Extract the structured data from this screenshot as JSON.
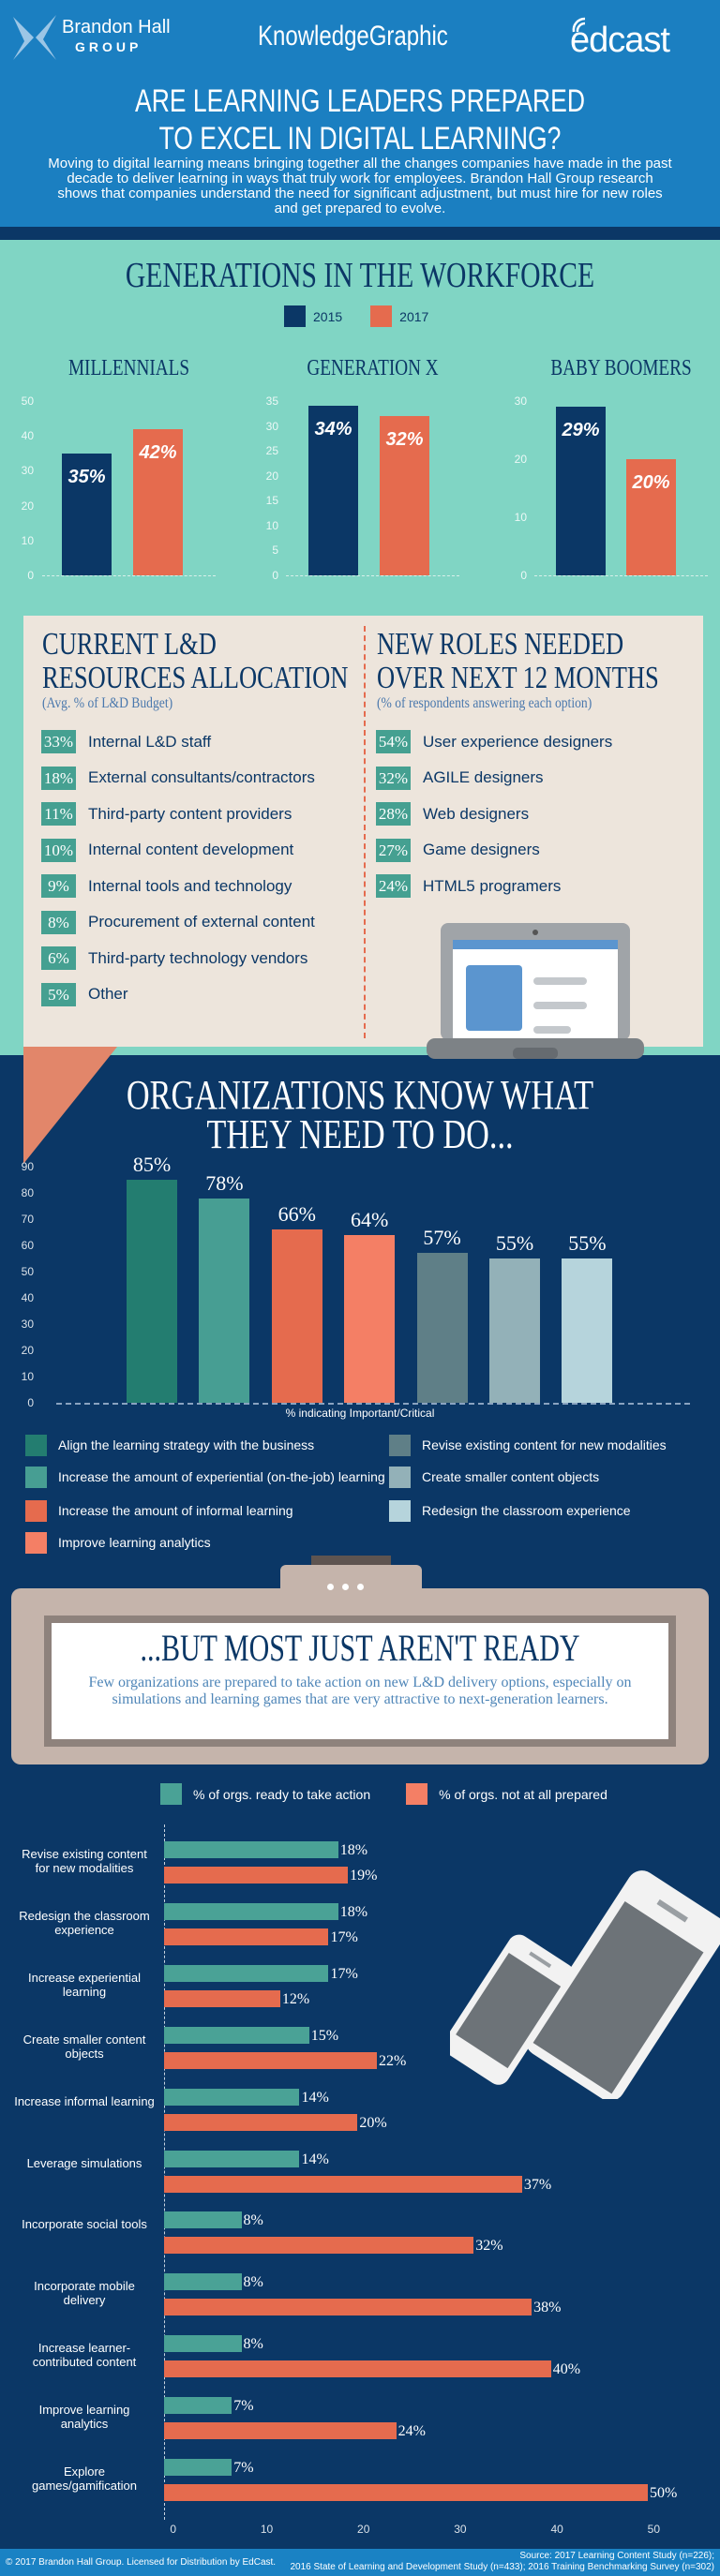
{
  "header": {
    "logo_left_line1": "Brandon Hall",
    "logo_left_line2": "GROUP",
    "center_brand": "KnowledgeGraphic",
    "logo_right": "edcast",
    "title_line1": "ARE LEARNING LEADERS PREPARED",
    "title_line2": "TO EXCEL IN DIGITAL LEARNING?",
    "intro": "Moving to digital learning means bringing together all the changes companies have made in the past decade to deliver learning in ways that truly work for employees. Brandon Hall Group research shows that companies understand the need for significant adjustment, but must hire for new roles and get prepared to evolve."
  },
  "colors": {
    "header_blue": "#1b7fc1",
    "navy": "#0b3766",
    "teal_bg": "#80d5c4",
    "beige": "#ede5dc",
    "series_2015": "#0b3766",
    "series_2017": "#e56b4e",
    "ready": "#4aa296",
    "not_prepared": "#e56b4e"
  },
  "generations": {
    "title": "GENERATIONS IN THE WORKFORCE",
    "legend": [
      "2015",
      "2017"
    ]
  },
  "allocation": {
    "title_line1": "CURRENT L&D",
    "title_line2": "RESOURCES ALLOCATION",
    "subtitle": "(Avg. % of L&D Budget)",
    "items": [
      {
        "pct": "33%",
        "label": "Internal L&D staff"
      },
      {
        "pct": "18%",
        "label": "External consultants/contractors"
      },
      {
        "pct": "11%",
        "label": "Third-party content providers"
      },
      {
        "pct": "10%",
        "label": "Internal content development"
      },
      {
        "pct": "9%",
        "label": "Internal tools and technology"
      },
      {
        "pct": "8%",
        "label": "Procurement of external content"
      },
      {
        "pct": "6%",
        "label": "Third-party technology vendors"
      },
      {
        "pct": "5%",
        "label": "Other"
      }
    ]
  },
  "roles": {
    "title_line1": "NEW ROLES NEEDED",
    "title_line2": "OVER NEXT 12 MONTHS",
    "subtitle": "(% of respondents answering each option)",
    "items": [
      {
        "pct": "54%",
        "label": "User experience designers"
      },
      {
        "pct": "32%",
        "label": "AGILE designers"
      },
      {
        "pct": "28%",
        "label": "Web designers"
      },
      {
        "pct": "27%",
        "label": "Game designers"
      },
      {
        "pct": "24%",
        "label": "HTML5 programers"
      }
    ]
  },
  "know": {
    "title_line1": "ORGANIZATIONS KNOW WHAT",
    "title_line2": "THEY NEED TO DO..."
  },
  "ready": {
    "title": "...BUT MOST JUST AREN'T READY",
    "body": "Few organizations are prepared to take action on new L&D delivery options, especially on simulations and learning games that are very attractive to next-generation learners."
  },
  "footer": {
    "copyright": "© 2017 Brandon Hall Group. Licensed for Distribution by EdCast.",
    "source_line1": "Source: 2017 Learning Content Study (n=226);",
    "source_line2": "2016 State of Learning and Development Study (n=433); 2016 Training Benchmarking Survey (n=302)"
  },
  "chart_data": [
    {
      "type": "bar",
      "title": "MILLENNIALS",
      "categories": [
        "2015",
        "2017"
      ],
      "values": [
        35,
        42
      ],
      "labels": [
        "35%",
        "42%"
      ],
      "ylim": [
        0,
        50
      ],
      "yticks": [
        0,
        10,
        20,
        30,
        40,
        50
      ]
    },
    {
      "type": "bar",
      "title": "GENERATION X",
      "categories": [
        "2015",
        "2017"
      ],
      "values": [
        34,
        32
      ],
      "labels": [
        "34%",
        "32%"
      ],
      "ylim": [
        0,
        35
      ],
      "yticks": [
        0,
        5,
        10,
        15,
        20,
        25,
        30,
        35
      ]
    },
    {
      "type": "bar",
      "title": "BABY BOOMERS",
      "categories": [
        "2015",
        "2017"
      ],
      "values": [
        29,
        20
      ],
      "labels": [
        "29%",
        "20%"
      ],
      "ylim": [
        0,
        30
      ],
      "yticks": [
        0,
        10,
        20,
        30
      ]
    },
    {
      "type": "bar",
      "xlabel": "% indicating Important/Critical",
      "ylim": [
        0,
        90
      ],
      "yticks": [
        0,
        10,
        20,
        30,
        40,
        50,
        60,
        70,
        80,
        90
      ],
      "grid": false,
      "categories": [
        "Align the learning strategy with the business",
        "Increase the amount of experiential (on-the-job) learning",
        "Increase the amount of informal learning",
        "Improve learning analytics",
        "Revise existing content for new modalities",
        "Create smaller content objects",
        "Redesign the classroom experience"
      ],
      "values": [
        85,
        78,
        66,
        64,
        57,
        55,
        55
      ],
      "labels": [
        "85%",
        "78%",
        "66%",
        "64%",
        "57%",
        "55%",
        "55%"
      ],
      "colors": [
        "#237d70",
        "#479e93",
        "#e56b4e",
        "#f47f65",
        "#5f7f87",
        "#93b1b8",
        "#b6d4dc"
      ],
      "legend": "bottom"
    },
    {
      "type": "bar",
      "orientation": "horizontal",
      "xlim": [
        0,
        50
      ],
      "xticks": [
        0,
        10,
        20,
        30,
        40,
        50
      ],
      "legend": "top",
      "categories": [
        "Revise existing content for new modalities",
        "Redesign the classroom experience",
        "Increase experiential learning",
        "Create smaller content objects",
        "Increase informal learning",
        "Leverage simulations",
        "Incorporate social tools",
        "Incorporate mobile delivery",
        "Increase learner-contributed content",
        "Improve learning analytics",
        "Explore games/gamification"
      ],
      "series": [
        {
          "name": "% of orgs. ready to take action",
          "values": [
            18,
            18,
            17,
            15,
            14,
            14,
            8,
            8,
            8,
            7,
            7
          ]
        },
        {
          "name": "% of orgs. not at all prepared",
          "values": [
            19,
            17,
            12,
            22,
            20,
            37,
            32,
            38,
            40,
            24,
            50
          ]
        }
      ]
    }
  ]
}
